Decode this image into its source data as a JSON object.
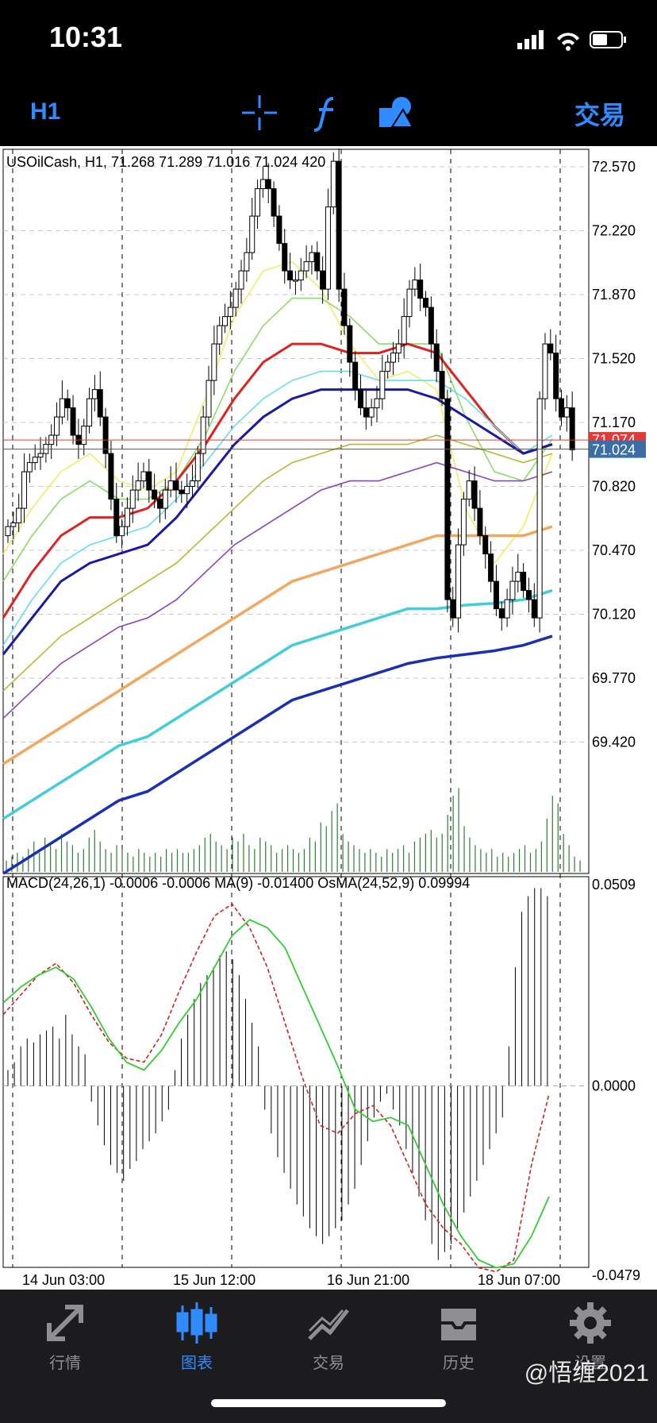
{
  "status": {
    "time": "10:31"
  },
  "toolbar": {
    "timeframe": "H1",
    "trade": "交易",
    "icons": [
      "crosshair-icon",
      "function-icon",
      "objects-icon"
    ]
  },
  "chart": {
    "info_line": "USOilCash, H1, 71.268 71.289 71.016 71.024 420",
    "price_ticks": [
      "72.570",
      "72.220",
      "71.870",
      "71.520",
      "71.170",
      "70.820",
      "70.470",
      "70.120",
      "69.770",
      "69.420"
    ],
    "current_price": "71.024",
    "bid_price": "71.074",
    "macd_info": "MACD(24,26,1) -0.0006 -0.0006 MA(9) -0.01400 OsMA(24,52,9) 0.09994",
    "macd_ticks": [
      "0.0509",
      "0.0000",
      "-0.0479"
    ],
    "time_ticks": [
      "14 Jun 03:00",
      "15 Jun 12:00",
      "16 Jun 21:00",
      "18 Jun 07:00"
    ],
    "colors": {
      "bull_candle": "#ffffff",
      "bear_candle": "#000000",
      "bid_line": "#e53935",
      "price_label": "#3a6ea5",
      "volume": "#2e7d32",
      "macd_line": "#33cc33",
      "signal_line": "#cc2222"
    }
  },
  "chart_data": {
    "type": "line",
    "symbol": "USOilCash",
    "timeframe": "H1",
    "ylim": [
      69.3,
      72.7
    ],
    "last_ohlc": {
      "open": 71.268,
      "high": 71.289,
      "low": 71.016,
      "close": 71.024,
      "volume": 420
    },
    "closes": [
      70.6,
      70.62,
      70.7,
      70.9,
      70.95,
      70.98,
      71.0,
      71.05,
      71.1,
      71.2,
      71.3,
      71.25,
      71.1,
      71.05,
      71.15,
      71.3,
      71.35,
      71.2,
      71.0,
      70.75,
      70.55,
      70.6,
      70.7,
      70.8,
      70.85,
      70.9,
      70.8,
      70.75,
      70.7,
      70.8,
      70.85,
      70.8,
      70.78,
      70.82,
      70.85,
      71.0,
      71.2,
      71.4,
      71.6,
      71.7,
      71.75,
      71.8,
      71.9,
      72.0,
      72.1,
      72.3,
      72.45,
      72.5,
      72.45,
      72.3,
      72.15,
      72.0,
      71.95,
      71.95,
      72.0,
      72.05,
      72.1,
      72.0,
      71.9,
      72.35,
      72.6,
      71.9,
      71.7,
      71.5,
      71.35,
      71.25,
      71.2,
      71.25,
      71.3,
      71.45,
      71.5,
      71.55,
      71.6,
      71.75,
      71.9,
      71.95,
      71.85,
      71.8,
      71.6,
      71.45,
      71.3,
      70.2,
      70.1,
      70.5,
      70.75,
      70.85,
      70.7,
      70.55,
      70.45,
      70.3,
      70.15,
      70.1,
      70.2,
      70.3,
      70.35,
      70.25,
      70.2,
      70.1,
      71.3,
      71.6,
      71.55,
      71.3,
      71.2,
      71.25,
      71.02
    ],
    "ma_series": [
      {
        "color": "#eeee66",
        "values": [
          70.45,
          70.7,
          70.9,
          71.0,
          70.85,
          70.8,
          70.9,
          71.3,
          71.75,
          72.0,
          72.05,
          71.9,
          71.6,
          71.4,
          71.45,
          71.35,
          70.7,
          70.4,
          70.6,
          71.0
        ]
      },
      {
        "color": "#88dd66",
        "values": [
          70.3,
          70.55,
          70.75,
          70.85,
          70.75,
          70.75,
          70.85,
          71.1,
          71.45,
          71.7,
          71.85,
          71.85,
          71.75,
          71.6,
          71.6,
          71.6,
          71.2,
          70.9,
          70.85,
          71.08
        ]
      },
      {
        "color": "#dd2222",
        "values": [
          70.1,
          70.35,
          70.55,
          70.65,
          70.65,
          70.7,
          70.85,
          71.05,
          71.3,
          71.5,
          71.6,
          71.6,
          71.55,
          71.55,
          71.6,
          71.55,
          71.35,
          71.15,
          71.0,
          71.05
        ]
      },
      {
        "color": "#66ddee",
        "values": [
          69.95,
          70.2,
          70.4,
          70.5,
          70.55,
          70.6,
          70.75,
          70.95,
          71.15,
          71.3,
          71.4,
          71.45,
          71.45,
          71.4,
          71.4,
          71.4,
          71.3,
          71.15,
          71.0,
          71.1
        ]
      },
      {
        "color": "#1a1aa0",
        "values": [
          69.9,
          70.1,
          70.3,
          70.4,
          70.45,
          70.5,
          70.65,
          70.85,
          71.05,
          71.2,
          71.3,
          71.35,
          71.35,
          71.35,
          71.35,
          71.3,
          71.2,
          71.1,
          71.0,
          71.05
        ]
      },
      {
        "color": "#b8b830",
        "values": [
          69.7,
          69.85,
          70.0,
          70.1,
          70.2,
          70.3,
          70.4,
          70.55,
          70.7,
          70.85,
          70.95,
          71.0,
          71.05,
          71.05,
          71.05,
          71.1,
          71.05,
          71.0,
          70.95,
          71.0
        ]
      },
      {
        "color": "#8844bb",
        "values": [
          69.55,
          69.7,
          69.85,
          69.95,
          70.05,
          70.1,
          70.2,
          70.35,
          70.5,
          70.6,
          70.7,
          70.8,
          70.85,
          70.85,
          70.9,
          70.95,
          70.9,
          70.85,
          70.85,
          70.9
        ]
      },
      {
        "color": "#f0a860",
        "values": [
          69.3,
          69.4,
          69.5,
          69.6,
          69.7,
          69.8,
          69.9,
          70.0,
          70.1,
          70.2,
          70.3,
          70.35,
          70.4,
          70.45,
          70.5,
          70.55,
          70.55,
          70.55,
          70.55,
          70.6
        ]
      },
      {
        "color": "#44ccdd",
        "values": [
          69.0,
          69.1,
          69.2,
          69.3,
          69.4,
          69.45,
          69.55,
          69.65,
          69.75,
          69.85,
          69.95,
          70.0,
          70.05,
          70.1,
          70.15,
          70.15,
          70.17,
          70.18,
          70.2,
          70.25
        ]
      },
      {
        "color": "#1a30b0",
        "values": [
          68.7,
          68.8,
          68.9,
          69.0,
          69.1,
          69.15,
          69.25,
          69.35,
          69.45,
          69.55,
          69.65,
          69.7,
          69.75,
          69.8,
          69.85,
          69.88,
          69.9,
          69.92,
          69.95,
          70.0
        ]
      }
    ],
    "volume": [
      3,
      4,
      5,
      4,
      6,
      8,
      5,
      9,
      7,
      6,
      10,
      8,
      7,
      5,
      6,
      9,
      11,
      8,
      6,
      5,
      7,
      6,
      5,
      4,
      6,
      5,
      4,
      5,
      4,
      6,
      5,
      6,
      5,
      5,
      6,
      7,
      9,
      10,
      8,
      7,
      6,
      9,
      8,
      10,
      7,
      6,
      9,
      8,
      7,
      5,
      6,
      7,
      6,
      5,
      6,
      9,
      8,
      13,
      12,
      16,
      18,
      10,
      8,
      7,
      6,
      5,
      6,
      5,
      4,
      6,
      5,
      6,
      7,
      5,
      8,
      9,
      10,
      11,
      9,
      10,
      15,
      20,
      22,
      12,
      9,
      7,
      6,
      5,
      6,
      4,
      5,
      4,
      5,
      6,
      7,
      5,
      6,
      8,
      14,
      20,
      18,
      10,
      7,
      4,
      3
    ],
    "macd_ylim": [
      -0.0479,
      0.0509
    ],
    "osma_histogram": [
      0.004,
      0.006,
      0.01,
      0.012,
      0.011,
      0.013,
      0.014,
      0.015,
      0.012,
      0.018,
      0.013,
      0.01,
      0.008,
      -0.004,
      -0.01,
      -0.015,
      -0.02,
      -0.022,
      -0.024,
      -0.021,
      -0.019,
      -0.016,
      -0.014,
      -0.012,
      -0.009,
      -0.006,
      0.004,
      0.012,
      0.018,
      0.022,
      0.026,
      0.028,
      0.03,
      0.033,
      0.034,
      0.032,
      0.028,
      0.022,
      0.016,
      0.01,
      -0.006,
      -0.012,
      -0.018,
      -0.022,
      -0.026,
      -0.03,
      -0.033,
      -0.036,
      -0.038,
      -0.04,
      -0.038,
      -0.036,
      -0.034,
      -0.03,
      -0.026,
      -0.02,
      -0.014,
      -0.008,
      -0.004,
      -0.002,
      -0.006,
      -0.01,
      -0.016,
      -0.022,
      -0.028,
      -0.034,
      -0.04,
      -0.044,
      -0.042,
      -0.04,
      -0.036,
      -0.032,
      -0.028,
      -0.024,
      -0.02,
      -0.016,
      -0.012,
      -0.008,
      0.01,
      0.03,
      0.044,
      0.048,
      0.05,
      0.05,
      0.048
    ],
    "macd_line": [
      0.021,
      0.025,
      0.028,
      0.03,
      0.027,
      0.02,
      0.012,
      0.006,
      0.004,
      0.009,
      0.016,
      0.022,
      0.03,
      0.038,
      0.042,
      0.04,
      0.035,
      0.025,
      0.015,
      0.005,
      -0.006,
      -0.009,
      -0.008,
      -0.01,
      -0.02,
      -0.03,
      -0.038,
      -0.044,
      -0.046,
      -0.045,
      -0.038,
      -0.028
    ],
    "signal_line": [
      0.018,
      0.023,
      0.028,
      0.031,
      0.026,
      0.018,
      0.011,
      0.007,
      0.006,
      0.013,
      0.024,
      0.034,
      0.043,
      0.046,
      0.04,
      0.03,
      0.016,
      0.002,
      -0.01,
      -0.012,
      -0.007,
      -0.005,
      -0.01,
      -0.02,
      -0.03,
      -0.036,
      -0.04,
      -0.046,
      -0.047,
      -0.044,
      -0.02,
      -0.002
    ]
  },
  "tabs": [
    {
      "label": "行情",
      "icon": "quotes-icon"
    },
    {
      "label": "图表",
      "icon": "chart-icon"
    },
    {
      "label": "交易",
      "icon": "trade-icon"
    },
    {
      "label": "历史",
      "icon": "history-icon"
    },
    {
      "label": "设置",
      "icon": "settings-icon"
    }
  ],
  "watermark": "@悟缠2021"
}
